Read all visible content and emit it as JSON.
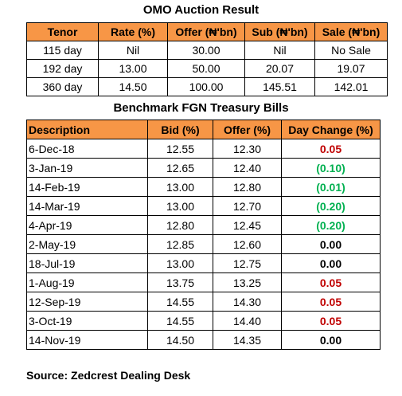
{
  "omo": {
    "title": "OMO Auction Result",
    "headers": [
      "Tenor",
      "Rate (%)",
      "Offer (₦'bn)",
      "Sub (₦'bn)",
      "Sale (₦'bn)"
    ],
    "rows": [
      [
        "115 day",
        "Nil",
        "30.00",
        "Nil",
        "No Sale"
      ],
      [
        "192 day",
        "13.00",
        "50.00",
        "20.07",
        "19.07"
      ],
      [
        "360 day",
        "14.50",
        "100.00",
        "145.51",
        "142.01"
      ]
    ]
  },
  "treasury": {
    "title": "Benchmark FGN Treasury Bills",
    "headers": [
      "Description",
      "Bid (%)",
      "Offer (%)",
      "Day Change (%)"
    ],
    "rows": [
      {
        "desc": "6-Dec-18",
        "bid": "12.55",
        "offer": "12.30",
        "change": "0.05",
        "dir": "pos"
      },
      {
        "desc": "3-Jan-19",
        "bid": "12.65",
        "offer": "12.40",
        "change": "(0.10)",
        "dir": "neg"
      },
      {
        "desc": "14-Feb-19",
        "bid": "13.00",
        "offer": "12.80",
        "change": "(0.01)",
        "dir": "neg"
      },
      {
        "desc": "14-Mar-19",
        "bid": "13.00",
        "offer": "12.70",
        "change": "(0.20)",
        "dir": "neg"
      },
      {
        "desc": "4-Apr-19",
        "bid": "12.80",
        "offer": "12.45",
        "change": "(0.20)",
        "dir": "neg"
      },
      {
        "desc": "2-May-19",
        "bid": "12.85",
        "offer": "12.60",
        "change": "0.00",
        "dir": "zero"
      },
      {
        "desc": "18-Jul-19",
        "bid": "13.00",
        "offer": "12.75",
        "change": "0.00",
        "dir": "zero"
      },
      {
        "desc": "1-Aug-19",
        "bid": "13.75",
        "offer": "13.25",
        "change": "0.05",
        "dir": "pos"
      },
      {
        "desc": "12-Sep-19",
        "bid": "14.55",
        "offer": "14.30",
        "change": "0.05",
        "dir": "pos"
      },
      {
        "desc": "3-Oct-19",
        "bid": "14.55",
        "offer": "14.40",
        "change": "0.05",
        "dir": "pos"
      },
      {
        "desc": "14-Nov-19",
        "bid": "14.50",
        "offer": "14.35",
        "change": "0.00",
        "dir": "zero"
      }
    ],
    "colors": {
      "pos": "#c00000",
      "neg": "#00b050",
      "zero": "#000000",
      "header": "#f79646"
    }
  },
  "source": "Source: Zedcrest Dealing Desk"
}
